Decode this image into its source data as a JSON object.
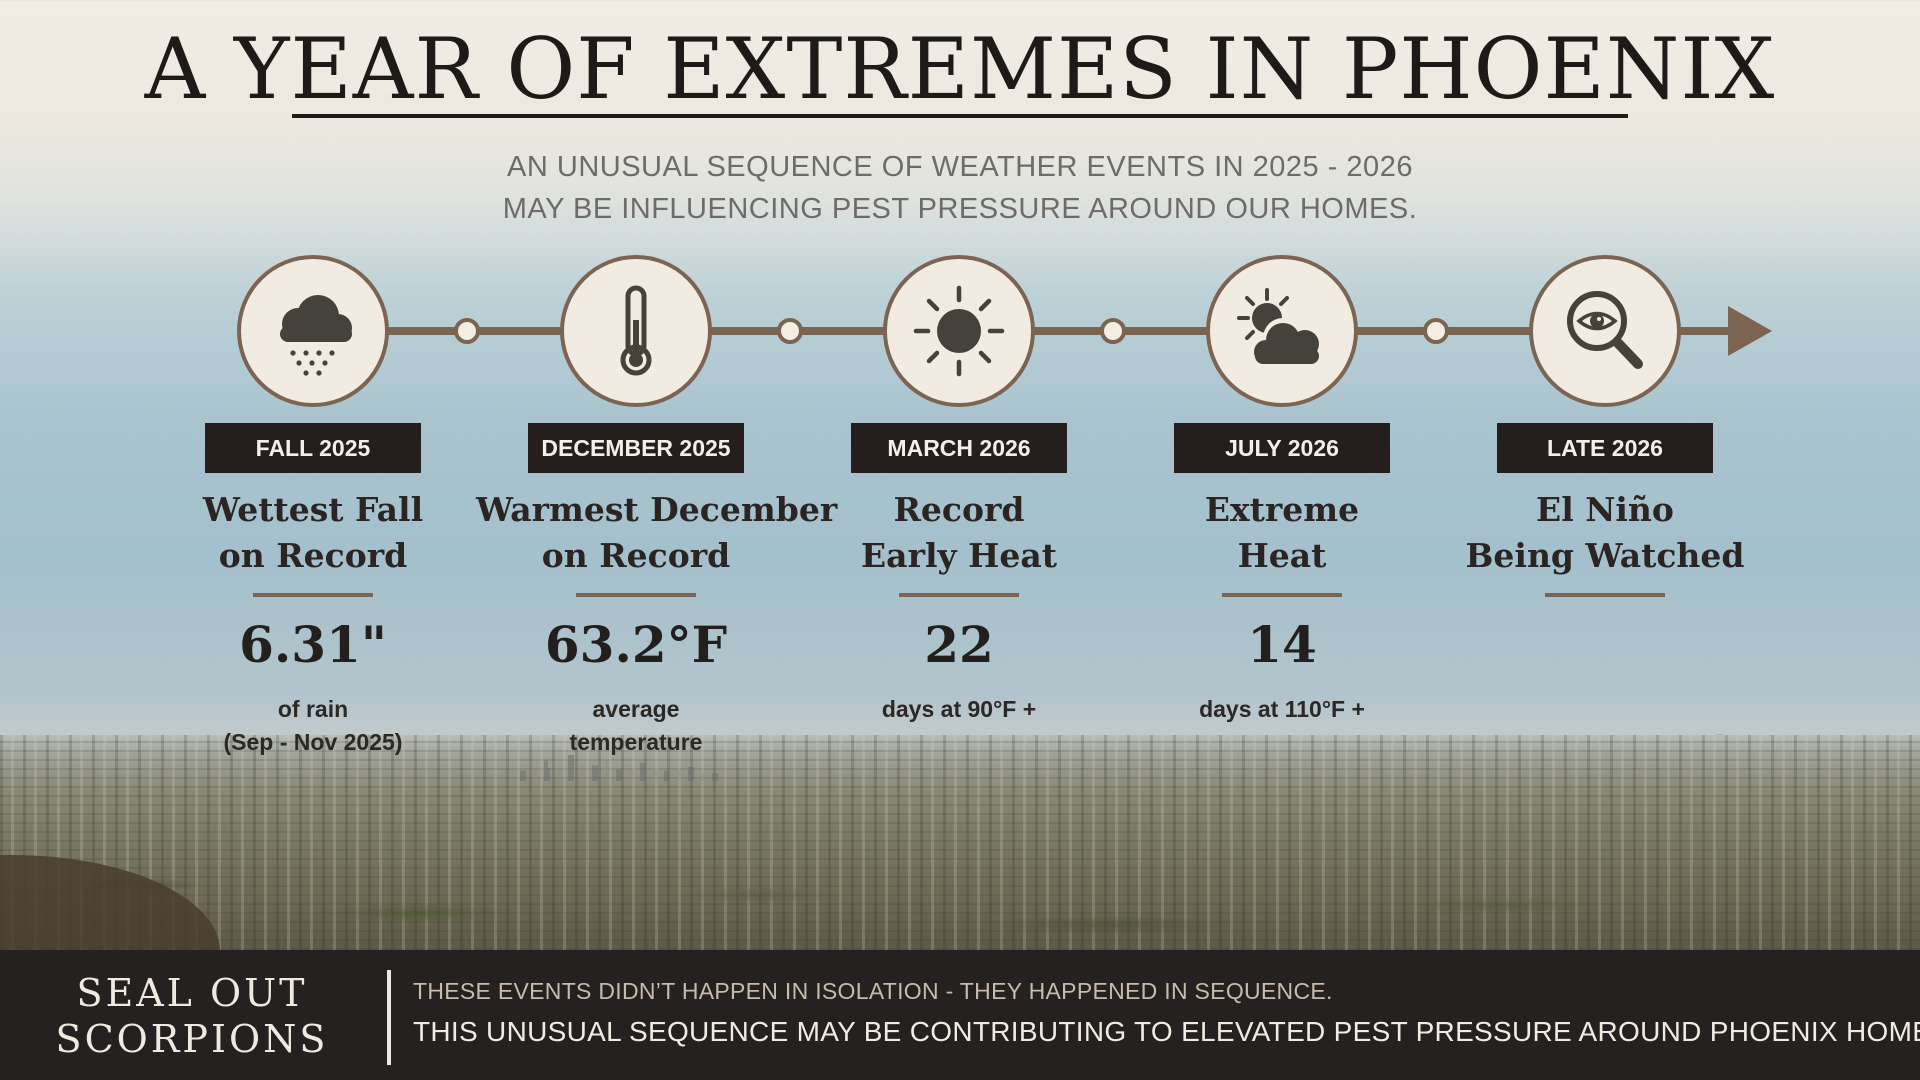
{
  "title": "A YEAR OF EXTREMES IN PHOENIX",
  "subtitle": {
    "line1": "AN UNUSUAL SEQUENCE OF WEATHER EVENTS IN 2025 - 2026",
    "line2": "MAY BE INFLUENCING PEST PRESSURE AROUND OUR HOMES."
  },
  "colors": {
    "accent": "#7b6452",
    "badge_bg": "#241f1d",
    "icon_bg": "#f1ebe1",
    "icon_fill": "#45423c",
    "footer_bg": "#242120"
  },
  "timeline": [
    {
      "icon": "rain-cloud-icon",
      "period": "FALL 2025",
      "event_line1": "Wettest Fall",
      "event_line2": "on Record",
      "stat": "6.31\"",
      "label_line1": "of rain",
      "label_line2": "(Sep - Nov 2025)"
    },
    {
      "icon": "thermometer-icon",
      "period": "DECEMBER 2025",
      "event_line1": "Warmest December",
      "event_line2": "on Record",
      "stat": "63.2°F",
      "label_line1": "average",
      "label_line2": "temperature"
    },
    {
      "icon": "sun-icon",
      "period": "MARCH 2026",
      "event_line1": "Record",
      "event_line2": "Early Heat",
      "stat": "22",
      "label_line1": "days at 90°F +",
      "label_line2": ""
    },
    {
      "icon": "sun-behind-cloud-icon",
      "period": "JULY 2026",
      "event_line1": "Extreme",
      "event_line2": "Heat",
      "stat": "14",
      "label_line1": "days at 110°F +",
      "label_line2": ""
    },
    {
      "icon": "magnifying-glass-eye-icon",
      "period": "LATE 2026",
      "event_line1": "El Niño",
      "event_line2": "Being Watched",
      "stat": "",
      "label_line1": "",
      "label_line2": ""
    }
  ],
  "footer": {
    "brand_line1": "SEAL OUT",
    "brand_line2": "SCORPIONS",
    "line1": "THESE EVENTS DIDN’T HAPPEN IN ISOLATION - THEY HAPPENED IN SEQUENCE.",
    "line2": "THIS UNUSUAL SEQUENCE MAY BE CONTRIBUTING TO ELEVATED PEST PRESSURE AROUND PHOENIX HOMES."
  }
}
